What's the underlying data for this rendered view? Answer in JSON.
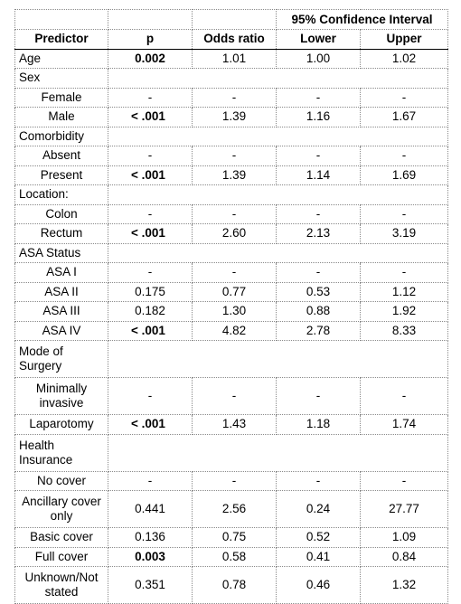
{
  "header": {
    "group_label": "95% Confidence Interval",
    "columns": [
      "Predictor",
      "p",
      "Odds ratio",
      "Lower",
      "Upper"
    ]
  },
  "rows": [
    {
      "label": "Age",
      "indent": false,
      "p": "0.002",
      "bold": true,
      "or": "1.01",
      "lower": "1.00",
      "upper": "1.02"
    },
    {
      "label": "Sex",
      "group": true
    },
    {
      "label": "Female",
      "indent": true,
      "p": "-",
      "or": "-",
      "lower": "-",
      "upper": "-"
    },
    {
      "label": "Male",
      "indent": true,
      "p": "< .001",
      "bold": true,
      "or": "1.39",
      "lower": "1.16",
      "upper": "1.67"
    },
    {
      "label": "Comorbidity",
      "group": true
    },
    {
      "label": "Absent",
      "indent": true,
      "p": "-",
      "or": "-",
      "lower": "-",
      "upper": "-"
    },
    {
      "label": "Present",
      "indent": true,
      "p": "< .001",
      "bold": true,
      "or": "1.39",
      "lower": "1.14",
      "upper": "1.69"
    },
    {
      "label": "Location:",
      "group": true
    },
    {
      "label": "Colon",
      "indent": true,
      "p": "-",
      "or": "-",
      "lower": "-",
      "upper": "-"
    },
    {
      "label": "Rectum",
      "indent": true,
      "p": "< .001",
      "bold": true,
      "or": "2.60",
      "lower": "2.13",
      "upper": "3.19"
    },
    {
      "label": "ASA Status",
      "group": true
    },
    {
      "label": "ASA I",
      "indent": true,
      "p": "-",
      "or": "-",
      "lower": "-",
      "upper": "-"
    },
    {
      "label": "ASA II",
      "indent": true,
      "p": "0.175",
      "or": "0.77",
      "lower": "0.53",
      "upper": "1.12"
    },
    {
      "label": "ASA III",
      "indent": true,
      "p": "0.182",
      "or": "1.30",
      "lower": "0.88",
      "upper": "1.92"
    },
    {
      "label": "ASA IV",
      "indent": true,
      "p": "< .001",
      "bold": true,
      "or": "4.82",
      "lower": "2.78",
      "upper": "8.33"
    },
    {
      "label": "Mode of Surgery",
      "group": true,
      "tall": true
    },
    {
      "label": "Minimally invasive",
      "indent": true,
      "tall": true,
      "p": "-",
      "or": "-",
      "lower": "-",
      "upper": "-"
    },
    {
      "label": "Laparotomy",
      "indent": true,
      "p": "< .001",
      "bold": true,
      "or": "1.43",
      "lower": "1.18",
      "upper": "1.74"
    },
    {
      "label": "Health Insurance",
      "group": true,
      "tall": true
    },
    {
      "label": "No cover",
      "indent": true,
      "p": "-",
      "or": "-",
      "lower": "-",
      "upper": "-"
    },
    {
      "label": "Ancillary cover only",
      "indent": true,
      "tall": true,
      "p": "0.441",
      "or": "2.56",
      "lower": "0.24",
      "upper": "27.77"
    },
    {
      "label": "Basic cover",
      "indent": true,
      "p": "0.136",
      "or": "0.75",
      "lower": "0.52",
      "upper": "1.09"
    },
    {
      "label": "Full cover",
      "indent": true,
      "p": "0.003",
      "bold": true,
      "or": "0.58",
      "lower": "0.41",
      "upper": "0.84"
    },
    {
      "label": "Unknown/Not stated",
      "indent": true,
      "tall": true,
      "p": "0.351",
      "or": "0.78",
      "lower": "0.46",
      "upper": "1.32"
    }
  ]
}
